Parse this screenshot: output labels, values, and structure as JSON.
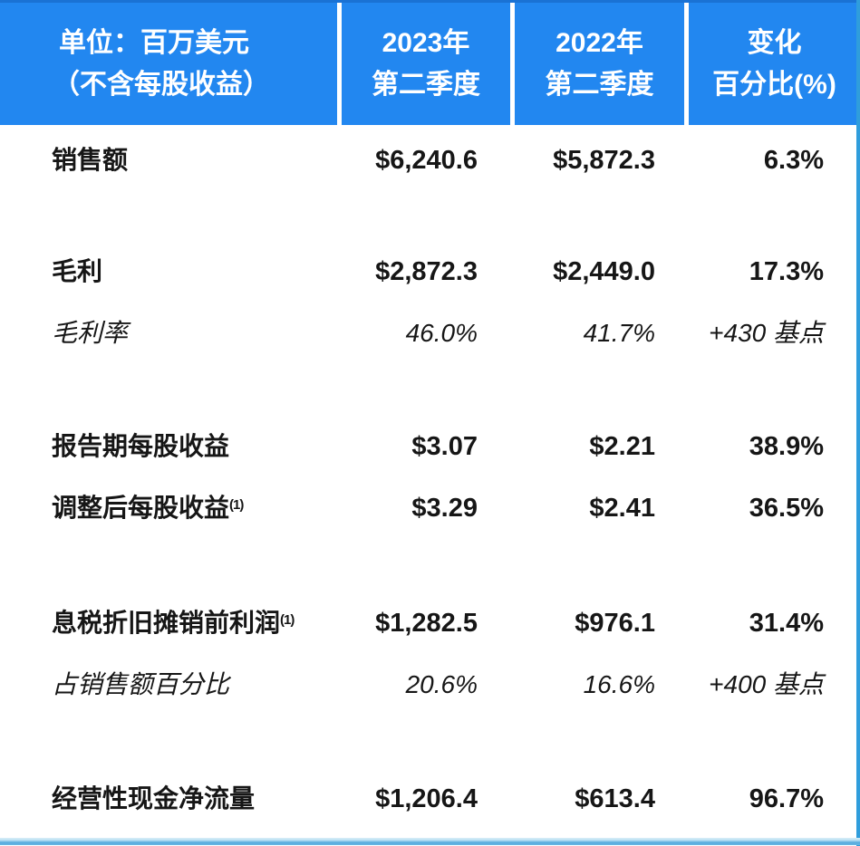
{
  "colors": {
    "header_bg": "#2287f0",
    "header_text": "#ffffff",
    "body_text": "#161616",
    "right_border": "#2f9ddc",
    "bottom_bar": "#55abde"
  },
  "header": {
    "unit_line1": "单位：百万美元",
    "unit_line2": "（不含每股收益）",
    "columns": [
      {
        "line1": "2023年",
        "line2": "第二季度"
      },
      {
        "line1": "2022年",
        "line2": "第二季度"
      },
      {
        "line1": "变化",
        "line2": "百分比(%)"
      }
    ]
  },
  "rows": [
    {
      "label": "销售额",
      "sup": "",
      "q2_2023": "$6,240.6",
      "q2_2022": "$5,872.3",
      "change": "6.3%"
    },
    {
      "label": "毛利",
      "sup": "",
      "q2_2023": "$2,872.3",
      "q2_2022": "$2,449.0",
      "change": "17.3%"
    },
    {
      "label": "毛利率",
      "sup": "",
      "q2_2023": "46.0%",
      "q2_2022": "41.7%",
      "change": "+430 基点"
    },
    {
      "label": "报告期每股收益",
      "sup": "",
      "q2_2023": "$3.07",
      "q2_2022": "$2.21",
      "change": "38.9%"
    },
    {
      "label": "调整后每股收益",
      "sup": "(1)",
      "q2_2023": "$3.29",
      "q2_2022": "$2.41",
      "change": "36.5%"
    },
    {
      "label": "息税折旧摊销前利润",
      "sup": "(1)",
      "q2_2023": "$1,282.5",
      "q2_2022": "$976.1",
      "change": "31.4%"
    },
    {
      "label": "占销售额百分比",
      "sup": "",
      "q2_2023": "20.6%",
      "q2_2022": "16.6%",
      "change": "+400 基点"
    },
    {
      "label": "经营性现金净流量",
      "sup": "",
      "q2_2023": "$1,206.4",
      "q2_2022": "$613.4",
      "change": "96.7%"
    }
  ]
}
